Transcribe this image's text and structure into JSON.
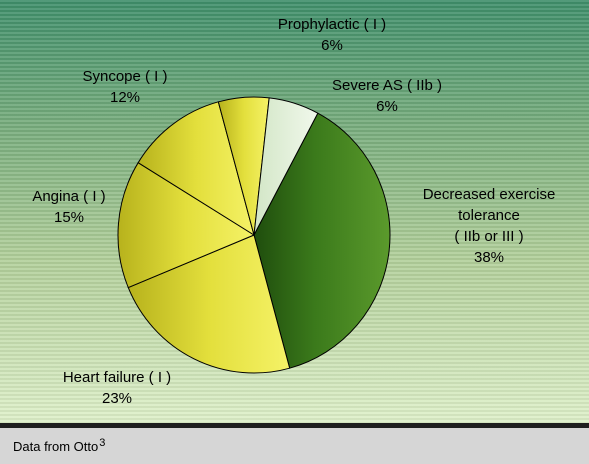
{
  "chart_data": {
    "type": "pie",
    "title": "",
    "slices": [
      {
        "name": "Decreased exercise tolerance ( IIb or III )",
        "value": 38,
        "color": "#3f7e1c"
      },
      {
        "name": "Heart failure ( I )",
        "value": 23,
        "color": "#d9d42e"
      },
      {
        "name": "Angina ( I )",
        "value": 15,
        "color": "#dedb3a"
      },
      {
        "name": "Syncope ( I )",
        "value": 12,
        "color": "#e4e143"
      },
      {
        "name": "Prophylactic ( I )",
        "value": 6,
        "color": "#eeec3f"
      },
      {
        "name": "Severe AS ( IIb )",
        "value": 6,
        "color": "#e4f1de"
      }
    ]
  },
  "labels": {
    "decreased": {
      "l1": "Decreased exercise",
      "l2": "tolerance",
      "l3": "( IIb or III )",
      "pct": "38%"
    },
    "heart_failure": {
      "l1": "Heart failure ( I )",
      "pct": "23%"
    },
    "angina": {
      "l1": "Angina  ( I )",
      "pct": "15%"
    },
    "syncope": {
      "l1": "Syncope  ( I )",
      "pct": "12%"
    },
    "prophylactic": {
      "l1": "Prophylactic ( I )",
      "pct": "6%"
    },
    "severe_as": {
      "l1": "Severe AS (  IIb )",
      "pct": "6%"
    }
  },
  "footer": {
    "source_text": "Data from Otto",
    "source_ref": "3"
  }
}
